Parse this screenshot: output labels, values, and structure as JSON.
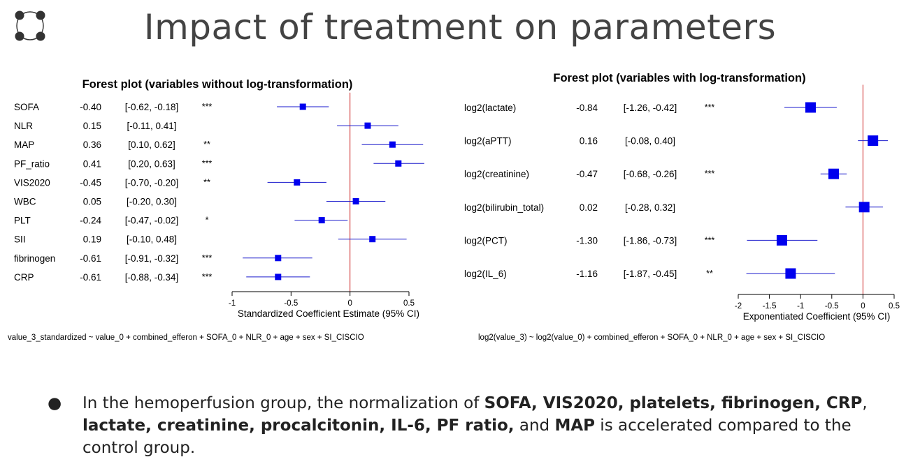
{
  "slide": {
    "title": "Impact of treatment on parameters",
    "bullet": {
      "symbol": "●",
      "segments": [
        {
          "text": "In the hemoperfusion group, the normalization of ",
          "bold": false
        },
        {
          "text": "SOFA, VIS2020, platelets, fibrinogen, CRP",
          "bold": true
        },
        {
          "text": ", ",
          "bold": false
        },
        {
          "text": "lactate, creatinine, procalcitonin, IL-6, PF ratio,",
          "bold": true
        },
        {
          "text": " and ",
          "bold": false
        },
        {
          "text": "MAP",
          "bold": true
        },
        {
          "text": " is accelerated compared to the control group.",
          "bold": false
        }
      ]
    },
    "formulas": {
      "left": "value_3_standardized ~ value_0 + combined_efferon + SOFA_0 + NLR_0 + age + sex + SI_CISCIO",
      "right": "log2(value_3) ~ log2(value_0) + combined_efferon + SOFA_0 + NLR_0 + age + sex + SI_CISCIO"
    },
    "colors": {
      "point": "#0000ee",
      "ci": "#1a1acc",
      "ref_line": "#cc2222",
      "logo": "#333333"
    }
  },
  "chart_data": [
    {
      "type": "forest",
      "title": "Forest plot (variables without log-transformation)",
      "xlabel": "Standardized Coefficient Estimate (95% CI)",
      "xlim": [
        -1,
        0.5
      ],
      "xticks": [
        -1,
        -0.5,
        0,
        0.5
      ],
      "xtick_labels": [
        "-1",
        "-0.5",
        "0",
        "0.5"
      ],
      "reference_line": 0,
      "rows": [
        {
          "label": "SOFA",
          "est": -0.4,
          "lo": -0.62,
          "hi": -0.18,
          "est_text": "-0.40",
          "ci_text": "[-0.62, -0.18]",
          "sig": "***"
        },
        {
          "label": "NLR",
          "est": 0.15,
          "lo": -0.11,
          "hi": 0.41,
          "est_text": "0.15",
          "ci_text": "[-0.11, 0.41]",
          "sig": ""
        },
        {
          "label": "MAP",
          "est": 0.36,
          "lo": 0.1,
          "hi": 0.62,
          "est_text": "0.36",
          "ci_text": "[0.10, 0.62]",
          "sig": "**"
        },
        {
          "label": "PF_ratio",
          "est": 0.41,
          "lo": 0.2,
          "hi": 0.63,
          "est_text": "0.41",
          "ci_text": "[0.20, 0.63]",
          "sig": "***"
        },
        {
          "label": "VIS2020",
          "est": -0.45,
          "lo": -0.7,
          "hi": -0.2,
          "est_text": "-0.45",
          "ci_text": "[-0.70, -0.20]",
          "sig": "**"
        },
        {
          "label": "WBC",
          "est": 0.05,
          "lo": -0.2,
          "hi": 0.3,
          "est_text": "0.05",
          "ci_text": "[-0.20, 0.30]",
          "sig": ""
        },
        {
          "label": "PLT",
          "est": -0.24,
          "lo": -0.47,
          "hi": -0.02,
          "est_text": "-0.24",
          "ci_text": "[-0.47, -0.02]",
          "sig": "*"
        },
        {
          "label": "SII",
          "est": 0.19,
          "lo": -0.1,
          "hi": 0.48,
          "est_text": "0.19",
          "ci_text": "[-0.10, 0.48]",
          "sig": ""
        },
        {
          "label": "fibrinogen",
          "est": -0.61,
          "lo": -0.91,
          "hi": -0.32,
          "est_text": "-0.61",
          "ci_text": "[-0.91, -0.32]",
          "sig": "***"
        },
        {
          "label": "CRP",
          "est": -0.61,
          "lo": -0.88,
          "hi": -0.34,
          "est_text": "-0.61",
          "ci_text": "[-0.88, -0.34]",
          "sig": "***"
        }
      ]
    },
    {
      "type": "forest",
      "title": "Forest plot (variables with log-transformation)",
      "xlabel": "Exponentiated Coefficient (95% CI)",
      "xlim": [
        -2,
        0.5
      ],
      "xticks": [
        -2,
        -1.5,
        -1,
        -0.5,
        0,
        0.5
      ],
      "xtick_labels": [
        "-2",
        "-1.5",
        "-1",
        "-0.5",
        "0",
        "0.5"
      ],
      "reference_line": 0,
      "rows": [
        {
          "label": "log2(lactate)",
          "est": -0.84,
          "lo": -1.26,
          "hi": -0.42,
          "est_text": "-0.84",
          "ci_text": "[-1.26, -0.42]",
          "sig": "***"
        },
        {
          "label": "log2(aPTT)",
          "est": 0.16,
          "lo": -0.08,
          "hi": 0.4,
          "est_text": "0.16",
          "ci_text": "[-0.08, 0.40]",
          "sig": ""
        },
        {
          "label": "log2(creatinine)",
          "est": -0.47,
          "lo": -0.68,
          "hi": -0.26,
          "est_text": "-0.47",
          "ci_text": "[-0.68, -0.26]",
          "sig": "***"
        },
        {
          "label": "log2(bilirubin_total)",
          "est": 0.02,
          "lo": -0.28,
          "hi": 0.32,
          "est_text": "0.02",
          "ci_text": "[-0.28, 0.32]",
          "sig": ""
        },
        {
          "label": "log2(PCT)",
          "est": -1.3,
          "lo": -1.86,
          "hi": -0.73,
          "est_text": "-1.30",
          "ci_text": "[-1.86, -0.73]",
          "sig": "***"
        },
        {
          "label": "log2(IL_6)",
          "est": -1.16,
          "lo": -1.87,
          "hi": -0.45,
          "est_text": "-1.16",
          "ci_text": "[-1.87, -0.45]",
          "sig": "**"
        }
      ]
    }
  ]
}
